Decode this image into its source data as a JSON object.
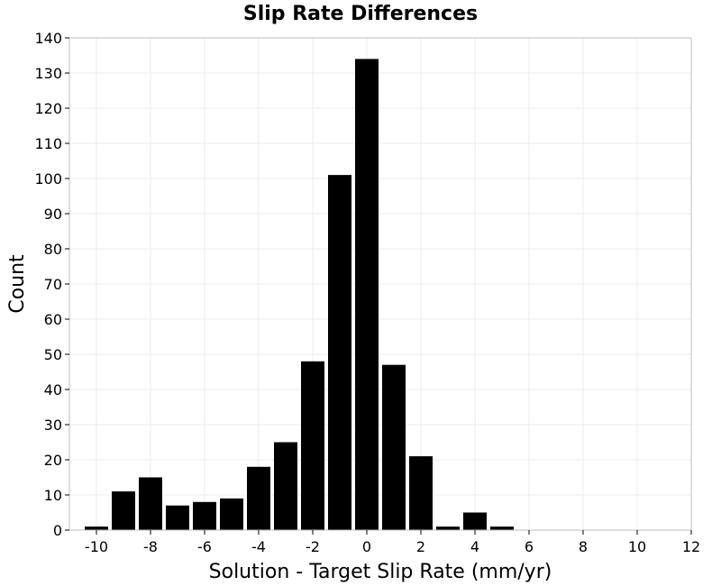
{
  "chart_data": {
    "type": "bar",
    "title": "Slip Rate Differences",
    "xlabel": "Solution - Target Slip Rate (mm/yr)",
    "ylabel": "Count",
    "xlim": [
      -11,
      12
    ],
    "ylim": [
      0,
      140
    ],
    "xticks": [
      -10,
      -8,
      -6,
      -4,
      -2,
      0,
      2,
      4,
      6,
      8,
      10,
      12
    ],
    "yticks": [
      0,
      10,
      20,
      30,
      40,
      50,
      60,
      70,
      80,
      90,
      100,
      110,
      120,
      130,
      140
    ],
    "grid": true,
    "bin_width": 1,
    "x": [
      -10,
      -9,
      -8,
      -7,
      -6,
      -5,
      -4,
      -3,
      -2,
      -1,
      0,
      1,
      2,
      3,
      4,
      5,
      6,
      7,
      8,
      9,
      10
    ],
    "values": [
      1,
      11,
      15,
      7,
      8,
      9,
      18,
      25,
      48,
      101,
      134,
      47,
      21,
      1,
      5,
      1,
      0,
      0,
      0,
      0,
      0
    ],
    "bar_color": "#000000"
  }
}
